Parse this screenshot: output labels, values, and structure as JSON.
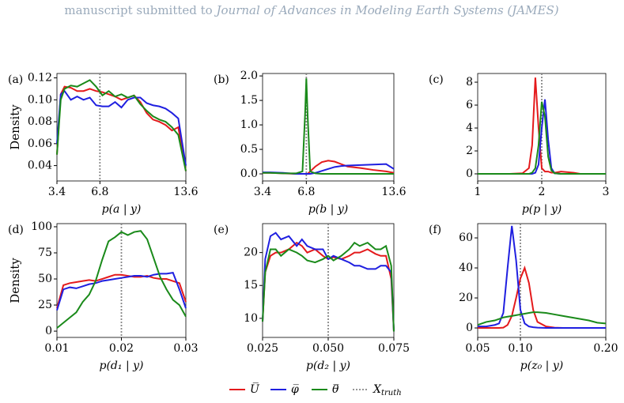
{
  "header": {
    "prefix": "manuscript submitted to",
    "journal": "Journal of Advances in Modeling Earth Systems (JAMES)"
  },
  "truth_label": {
    "main": "X",
    "sub": "truth"
  },
  "chart_data": [
    {
      "type": "line",
      "panel": "(a)",
      "y_label": "Density",
      "x_label": "p(a | y)",
      "truth": 6.8,
      "xlim": [
        3.4,
        13.6
      ],
      "xticks": [
        3.4,
        6.8,
        13.6
      ],
      "ylim": [
        0.026,
        0.124
      ],
      "yticks": [
        0.04,
        0.06,
        0.08,
        {
          "value": 0.1,
          "label": "0.10"
        },
        0.12
      ],
      "x": [
        3.4,
        3.7,
        4,
        4.5,
        5,
        5.5,
        6,
        6.5,
        7,
        7.5,
        8,
        8.5,
        9,
        9.5,
        10,
        10.5,
        11,
        11.5,
        12,
        12.5,
        13,
        13.6
      ],
      "series": [
        {
          "name": "U̅",
          "color": "#e41a1c",
          "values": [
            0.05,
            0.105,
            0.112,
            0.111,
            0.108,
            0.108,
            0.11,
            0.108,
            0.107,
            0.105,
            0.103,
            0.1,
            0.102,
            0.104,
            0.098,
            0.088,
            0.082,
            0.08,
            0.077,
            0.072,
            0.075,
            0.035
          ]
        },
        {
          "name": "φ̅",
          "color": "#1f1fe0",
          "values": [
            0.06,
            0.105,
            0.108,
            0.1,
            0.103,
            0.1,
            0.102,
            0.095,
            0.094,
            0.094,
            0.098,
            0.093,
            0.1,
            0.102,
            0.102,
            0.097,
            0.095,
            0.094,
            0.092,
            0.088,
            0.083,
            0.04
          ]
        },
        {
          "name": "θ̅",
          "color": "#1a8a1a",
          "values": [
            0.05,
            0.1,
            0.11,
            0.113,
            0.112,
            0.115,
            0.118,
            0.112,
            0.104,
            0.108,
            0.103,
            0.105,
            0.102,
            0.104,
            0.096,
            0.09,
            0.085,
            0.082,
            0.08,
            0.075,
            0.068,
            0.035
          ]
        }
      ]
    },
    {
      "type": "line",
      "panel": "(b)",
      "x_label": "p(b | y)",
      "truth": 6.8,
      "xlim": [
        3.4,
        13.6
      ],
      "xticks": [
        3.4,
        6.8,
        13.6
      ],
      "ylim": [
        -0.145,
        2.05
      ],
      "yticks": [
        {
          "value": 0,
          "label": "0.0"
        },
        0.5,
        {
          "value": 1,
          "label": "1.0"
        },
        1.5,
        {
          "value": 2,
          "label": "2.0"
        }
      ],
      "x": [
        3.4,
        4,
        5,
        6,
        6.5,
        6.7,
        6.8,
        6.9,
        7.1,
        7.5,
        8,
        8.5,
        9,
        9.5,
        10,
        11,
        12,
        13,
        13.6
      ],
      "series": [
        {
          "name": "U̅",
          "color": "#e41a1c",
          "values": [
            0.02,
            0.02,
            0.01,
            0,
            0,
            0,
            0,
            0,
            0.05,
            0.15,
            0.24,
            0.27,
            0.25,
            0.2,
            0.15,
            0.12,
            0.08,
            0.05,
            0.02
          ]
        },
        {
          "name": "φ̅",
          "color": "#1f1fe0",
          "values": [
            0.03,
            0.03,
            0.02,
            0,
            0,
            0,
            0,
            0,
            0,
            0.02,
            0.06,
            0.1,
            0.14,
            0.16,
            0.17,
            0.18,
            0.19,
            0.2,
            0.1
          ]
        },
        {
          "name": "θ̅",
          "color": "#1a8a1a",
          "values": [
            0.02,
            0.02,
            0.01,
            0.01,
            0.05,
            1.2,
            1.95,
            1.2,
            0.05,
            0.01,
            0,
            0,
            0,
            0,
            0,
            0,
            0,
            0,
            0
          ]
        }
      ]
    },
    {
      "type": "line",
      "panel": "(c)",
      "x_label": "p(p | y)",
      "truth": 2,
      "xlim": [
        1,
        3
      ],
      "xticks": [
        1,
        2,
        3
      ],
      "ylim": [
        -0.62,
        8.76
      ],
      "yticks": [
        0,
        2,
        4,
        6,
        8
      ],
      "x": [
        1,
        1.5,
        1.7,
        1.8,
        1.85,
        1.9,
        1.95,
        2,
        2.05,
        2.1,
        2.15,
        2.2,
        2.3,
        2.5,
        2.6,
        3
      ],
      "series": [
        {
          "name": "U̅",
          "color": "#e41a1c",
          "values": [
            0,
            0,
            0.05,
            0.5,
            2.5,
            8.4,
            4,
            0.5,
            0.2,
            0.2,
            0.1,
            0.1,
            0.2,
            0.1,
            0,
            0
          ]
        },
        {
          "name": "φ̅",
          "color": "#1f1fe0",
          "values": [
            0,
            0,
            0,
            0,
            0,
            0.1,
            0.8,
            4,
            6.5,
            3,
            0.5,
            0.05,
            0,
            0,
            0,
            0
          ]
        },
        {
          "name": "θ̅",
          "color": "#1a8a1a",
          "values": [
            0,
            0,
            0,
            0,
            0.1,
            0.5,
            2.5,
            6.3,
            5,
            1.5,
            0.3,
            0.05,
            0,
            0,
            0,
            0
          ]
        }
      ]
    },
    {
      "type": "line",
      "panel": "(d)",
      "y_label": "Density",
      "x_label": "p(d₁ | y)",
      "truth": 0.02,
      "xlim": [
        0.01,
        0.03
      ],
      "xticks": [
        0.01,
        0.02,
        0.03
      ],
      "ylim": [
        -6,
        103
      ],
      "yticks": [
        0,
        25,
        50,
        75,
        100
      ],
      "x": [
        0.01,
        0.011,
        0.012,
        0.013,
        0.014,
        0.015,
        0.016,
        0.017,
        0.018,
        0.019,
        0.02,
        0.021,
        0.022,
        0.023,
        0.024,
        0.025,
        0.026,
        0.027,
        0.028,
        0.029,
        0.03
      ],
      "series": [
        {
          "name": "U̅",
          "color": "#e41a1c",
          "values": [
            22,
            44,
            46,
            47,
            48,
            49,
            48,
            50,
            52,
            54,
            54,
            53,
            52,
            52,
            53,
            51,
            50,
            50,
            48,
            46,
            28
          ]
        },
        {
          "name": "φ̅",
          "color": "#1f1fe0",
          "values": [
            20,
            40,
            42,
            41,
            43,
            45,
            46,
            48,
            49,
            50,
            51,
            52,
            53,
            53,
            52,
            54,
            55,
            55,
            56,
            40,
            22
          ]
        },
        {
          "name": "θ̅",
          "color": "#1a8a1a",
          "values": [
            3,
            8,
            13,
            18,
            28,
            35,
            48,
            68,
            86,
            90,
            95,
            92,
            95,
            96,
            88,
            70,
            52,
            40,
            30,
            25,
            14
          ]
        }
      ]
    },
    {
      "type": "line",
      "panel": "(e)",
      "x_label": "p(d₂ | y)",
      "truth": 0.05,
      "xlim": [
        0.025,
        0.075
      ],
      "xticks": [
        0.025,
        {
          "value": 0.05,
          "label": "0.050"
        },
        0.075
      ],
      "ylim": [
        7.1,
        24.4
      ],
      "yticks": [
        10,
        15,
        20
      ],
      "x": [
        0.025,
        0.026,
        0.028,
        0.03,
        0.032,
        0.035,
        0.038,
        0.04,
        0.042,
        0.045,
        0.048,
        0.05,
        0.052,
        0.055,
        0.058,
        0.06,
        0.062,
        0.065,
        0.068,
        0.07,
        0.072,
        0.074,
        0.075
      ],
      "series": [
        {
          "name": "U̅",
          "color": "#e41a1c",
          "values": [
            9.5,
            17,
            19.5,
            20,
            20,
            20.5,
            21.5,
            21,
            20,
            20.5,
            19.5,
            19,
            19.3,
            19,
            19.5,
            20,
            20,
            20.5,
            19.8,
            19.5,
            19.5,
            16,
            8
          ]
        },
        {
          "name": "φ̅",
          "color": "#1f1fe0",
          "values": [
            9.5,
            19,
            22.5,
            23,
            22,
            22.5,
            21,
            22,
            21,
            20.5,
            20.5,
            19,
            19.5,
            19,
            18.5,
            18,
            18,
            17.5,
            17.5,
            18,
            18,
            17,
            8
          ]
        },
        {
          "name": "θ̅",
          "color": "#1a8a1a",
          "values": [
            9.5,
            17,
            20.5,
            20.5,
            19.5,
            20.5,
            20,
            19.5,
            18.8,
            18.5,
            19,
            19.5,
            18.8,
            19.5,
            20.5,
            21.5,
            21,
            21.5,
            20.5,
            20.5,
            21,
            18,
            8
          ]
        }
      ]
    },
    {
      "type": "line",
      "panel": "(f)",
      "x_label": "p(z₀ | y)",
      "truth": 0.1,
      "xlim": [
        0.05,
        0.2
      ],
      "xticks": [
        0.05,
        {
          "value": 0.1,
          "label": "0.10"
        },
        {
          "value": 0.2,
          "label": "0.20"
        }
      ],
      "ylim": [
        -6.3,
        69.5
      ],
      "yticks": [
        0,
        20,
        40,
        60
      ],
      "x": [
        0.05,
        0.06,
        0.07,
        0.075,
        0.08,
        0.085,
        0.09,
        0.095,
        0.1,
        0.105,
        0.11,
        0.115,
        0.12,
        0.13,
        0.14,
        0.15,
        0.16,
        0.17,
        0.18,
        0.19,
        0.2
      ],
      "series": [
        {
          "name": "U̅",
          "color": "#e41a1c",
          "values": [
            0,
            0,
            0,
            0,
            0.2,
            2,
            8,
            20,
            33,
            40,
            30,
            12,
            4,
            1,
            0.2,
            0,
            0,
            0,
            0,
            0,
            0
          ]
        },
        {
          "name": "φ̅",
          "color": "#1f1fe0",
          "values": [
            1,
            1,
            2,
            3,
            10,
            40,
            68,
            45,
            12,
            3,
            1,
            0.5,
            0.2,
            0,
            0,
            0,
            0,
            0,
            0,
            0,
            0
          ]
        },
        {
          "name": "θ̅",
          "color": "#1a8a1a",
          "values": [
            2,
            4,
            5,
            6,
            7,
            7.5,
            8,
            8.5,
            9,
            9.5,
            10,
            10.5,
            10.5,
            10,
            9,
            8,
            7,
            6,
            5,
            3.5,
            3
          ]
        }
      ]
    }
  ]
}
